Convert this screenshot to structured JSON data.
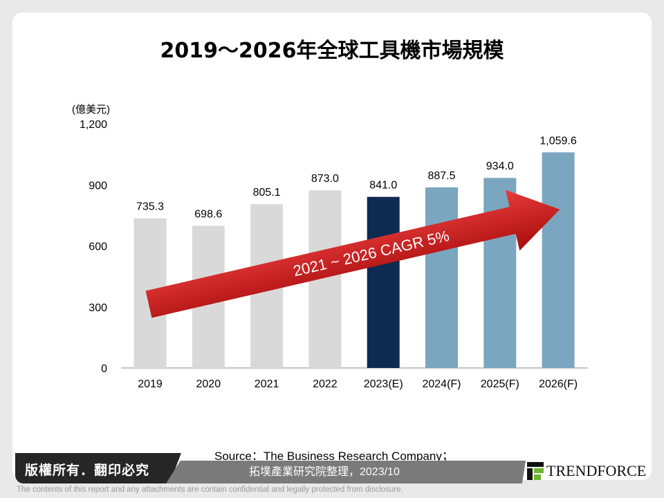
{
  "chart_data": {
    "type": "bar",
    "title": "2019～2026年全球工具機市場規模",
    "ylabel": "(億美元)",
    "ylim": [
      0,
      1200
    ],
    "yticks": [
      "0",
      "300",
      "600",
      "900",
      "1,200"
    ],
    "categories": [
      "2019",
      "2020",
      "2021",
      "2022",
      "2023(E)",
      "2024(F)",
      "2025(F)",
      "2026(F)"
    ],
    "values": [
      735.3,
      698.6,
      805.1,
      873.0,
      841.0,
      887.5,
      934.0,
      1059.6
    ],
    "data_labels": [
      "735.3",
      "698.6",
      "805.1",
      "873.0",
      "841.0",
      "887.5",
      "934.0",
      "1,059.6"
    ],
    "bar_colors": [
      "#d9d9d9",
      "#d9d9d9",
      "#d9d9d9",
      "#d9d9d9",
      "#0d2a50",
      "#7aa6c0",
      "#7aa6c0",
      "#7aa6c0"
    ],
    "annotation": "2021 ~ 2026 CAGR 5%",
    "annotation_color": "#d42020",
    "grid": false
  },
  "footer": {
    "source": "Source：The Business Research Company；",
    "source2": "拓墣產業研究院整理，2023/10",
    "copyright": "版權所有．翻印必究",
    "logo": "TRENDFORCE",
    "disclaimer": "The contents of this report and any attachments are contain confidential and legally protected from disclosure."
  }
}
